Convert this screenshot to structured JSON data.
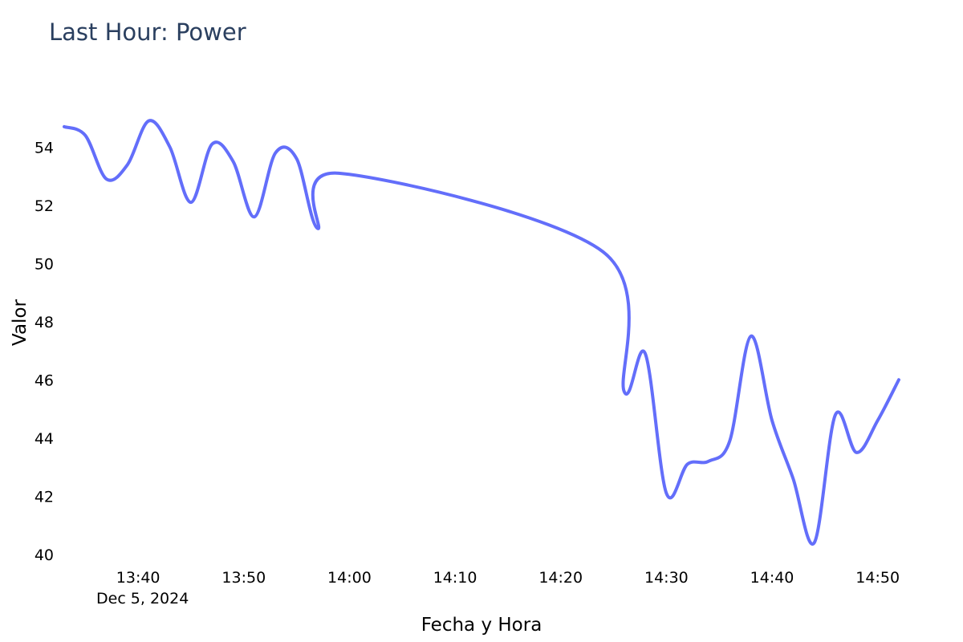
{
  "chart_data": {
    "type": "line",
    "title": "Last Hour: Power",
    "xlabel": "Fecha y Hora",
    "ylabel": "Valor",
    "x_tick_labels": [
      "13:40",
      "13:50",
      "14:00",
      "14:10",
      "14:20",
      "14:30",
      "14:40",
      "14:50"
    ],
    "x_date_label": "Dec 5, 2024",
    "y_tick_labels": [
      "40",
      "42",
      "44",
      "46",
      "48",
      "50",
      "52",
      "54"
    ],
    "xlim": [
      "2024-12-05 13:33:00",
      "2024-12-05 14:52:00"
    ],
    "ylim": [
      39.8,
      55.8
    ],
    "grid": false,
    "line_color": "#636efa",
    "series": [
      {
        "x": [
          "2024-12-05 13:33:00",
          "2024-12-05 13:35:00",
          "2024-12-05 13:37:00",
          "2024-12-05 13:39:00",
          "2024-12-05 13:41:00",
          "2024-12-05 13:43:00",
          "2024-12-05 13:45:00",
          "2024-12-05 13:47:00",
          "2024-12-05 13:49:00",
          "2024-12-05 13:51:00",
          "2024-12-05 13:53:00",
          "2024-12-05 13:55:00",
          "2024-12-05 13:57:00",
          "2024-12-05 13:59:00",
          "2024-12-05 14:24:00",
          "2024-12-05 14:26:00",
          "2024-12-05 14:28:00",
          "2024-12-05 14:30:00",
          "2024-12-05 14:32:00",
          "2024-12-05 14:34:00",
          "2024-12-05 14:36:00",
          "2024-12-05 14:38:00",
          "2024-12-05 14:40:00",
          "2024-12-05 14:42:00",
          "2024-12-05 14:44:00",
          "2024-12-05 14:46:00",
          "2024-12-05 14:48:00",
          "2024-12-05 14:50:00",
          "2024-12-05 14:52:00"
        ],
        "values": [
          54.7,
          54.4,
          52.9,
          53.4,
          54.9,
          54.0,
          52.1,
          54.1,
          53.5,
          51.6,
          53.8,
          53.6,
          51.2,
          53.1,
          50.4,
          45.6,
          46.9,
          42.1,
          43.1,
          43.2,
          43.9,
          47.5,
          44.6,
          42.6,
          40.4,
          44.8,
          43.5,
          44.6,
          46.0
        ]
      }
    ]
  }
}
